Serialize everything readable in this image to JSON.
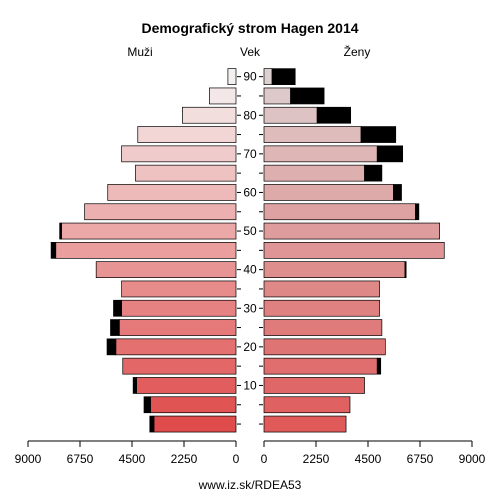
{
  "chart_data": {
    "type": "bar",
    "title": "Demografický strom Hagen 2014",
    "left_label": "Muži",
    "center_label": "Vek",
    "right_label": "Ženy",
    "age_groups": [
      "0-4",
      "5-9",
      "10-14",
      "15-19",
      "20-24",
      "25-29",
      "30-34",
      "35-39",
      "40-44",
      "45-49",
      "50-54",
      "55-59",
      "60-64",
      "65-69",
      "70-74",
      "75-79",
      "80-84",
      "85-89",
      "90+"
    ],
    "age_ticks": [
      10,
      20,
      30,
      40,
      50,
      60,
      70,
      80,
      90
    ],
    "x_ticks": [
      9000,
      6750,
      4500,
      2250,
      0,
      2250,
      4500,
      6750,
      9000
    ],
    "xlim": [
      0,
      9000
    ],
    "series": [
      {
        "name": "Muži",
        "side": "left",
        "values": [
          3550,
          3700,
          4300,
          4900,
          5200,
          5050,
          4950,
          4950,
          6050,
          7800,
          7550,
          6550,
          5550,
          4350,
          4950,
          4250,
          2320,
          1150,
          350
        ],
        "surplus": [
          180,
          280,
          150,
          0,
          380,
          380,
          350,
          0,
          0,
          200,
          80,
          0,
          0,
          0,
          0,
          0,
          0,
          0,
          0
        ]
      },
      {
        "name": "Ženy",
        "side": "right",
        "values": [
          3550,
          3720,
          4350,
          4900,
          5250,
          5100,
          5000,
          5000,
          6100,
          7800,
          7600,
          6550,
          5600,
          4350,
          4900,
          4200,
          2300,
          1150,
          350
        ],
        "surplus": [
          0,
          0,
          0,
          150,
          0,
          0,
          0,
          0,
          50,
          0,
          0,
          150,
          350,
          750,
          1100,
          1500,
          1450,
          1450,
          1000
        ]
      }
    ],
    "colors": {
      "male_young": "#e04b4b",
      "male_old": "#f5f0f0",
      "female_young": "#e05a5a",
      "female_old": "#ddd0d0",
      "surplus": "#000000",
      "outline": "#000000"
    },
    "grid": false
  },
  "footer": {
    "url": "www.iz.sk/RDEA53"
  }
}
